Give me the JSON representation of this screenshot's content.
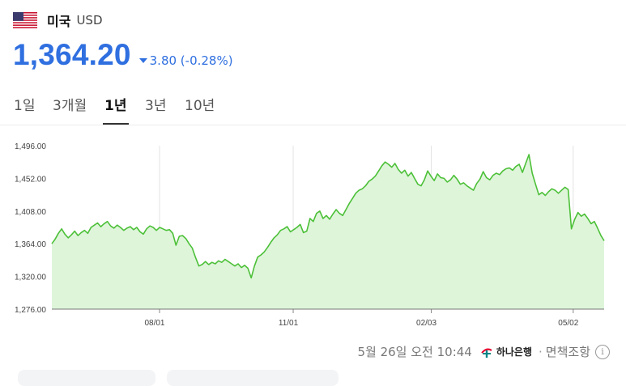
{
  "header": {
    "flag_icon": "us-flag-icon",
    "country": "미국",
    "currency_code": "USD"
  },
  "price": {
    "value": "1,364.20",
    "change_icon": "triangle-down-icon",
    "change_text": "3.80 (-0.28%)",
    "color": "#2f6fe0"
  },
  "tabs": [
    {
      "label": "1일",
      "active": false
    },
    {
      "label": "3개월",
      "active": false
    },
    {
      "label": "1년",
      "active": true
    },
    {
      "label": "3년",
      "active": false
    },
    {
      "label": "10년",
      "active": false
    }
  ],
  "chart_data": {
    "type": "area",
    "y_ticks": [
      "1,496.00",
      "1,452.00",
      "1,408.00",
      "1,364.00",
      "1,320.00",
      "1,276.00"
    ],
    "ylim": [
      1276,
      1496
    ],
    "x_ticks": [
      "08/01",
      "11/01",
      "02/03",
      "05/02"
    ],
    "line_color": "#4cc038",
    "fill_color": "#def5da",
    "grid": "vertical",
    "series": [
      {
        "values": [
          1364,
          1370,
          1378,
          1384,
          1377,
          1372,
          1376,
          1381,
          1375,
          1379,
          1382,
          1378,
          1386,
          1389,
          1392,
          1387,
          1391,
          1394,
          1388,
          1385,
          1389,
          1386,
          1382,
          1385,
          1387,
          1383,
          1386,
          1380,
          1377,
          1384,
          1388,
          1386,
          1382,
          1386,
          1384,
          1382,
          1383,
          1378,
          1362,
          1374,
          1375,
          1371,
          1364,
          1358,
          1345,
          1334,
          1336,
          1340,
          1336,
          1339,
          1337,
          1341,
          1339,
          1343,
          1340,
          1337,
          1334,
          1337,
          1332,
          1335,
          1331,
          1318,
          1334,
          1346,
          1349,
          1353,
          1359,
          1366,
          1372,
          1376,
          1382,
          1384,
          1387,
          1380,
          1383,
          1386,
          1390,
          1379,
          1381,
          1398,
          1394,
          1405,
          1408,
          1398,
          1402,
          1397,
          1404,
          1410,
          1405,
          1402,
          1410,
          1418,
          1425,
          1432,
          1436,
          1438,
          1442,
          1448,
          1451,
          1455,
          1462,
          1469,
          1474,
          1471,
          1467,
          1472,
          1464,
          1459,
          1463,
          1455,
          1460,
          1452,
          1444,
          1442,
          1450,
          1462,
          1455,
          1449,
          1458,
          1453,
          1452,
          1447,
          1450,
          1456,
          1451,
          1444,
          1446,
          1442,
          1439,
          1436,
          1445,
          1451,
          1461,
          1453,
          1450,
          1456,
          1459,
          1457,
          1462,
          1465,
          1466,
          1463,
          1468,
          1471,
          1460,
          1472,
          1484,
          1459,
          1444,
          1430,
          1433,
          1429,
          1434,
          1438,
          1436,
          1432,
          1436,
          1440,
          1437,
          1384,
          1397,
          1406,
          1401,
          1404,
          1398,
          1391,
          1394,
          1385,
          1375,
          1368
        ]
      }
    ]
  },
  "footer": {
    "timestamp": "5월 26일 오전 10:44",
    "bank_icon": "hana-bank-logo-icon",
    "bank_name": "하나은행",
    "separator": "·",
    "source_note": "면책조항",
    "info_icon": "info-icon",
    "info_glyph": "i"
  }
}
